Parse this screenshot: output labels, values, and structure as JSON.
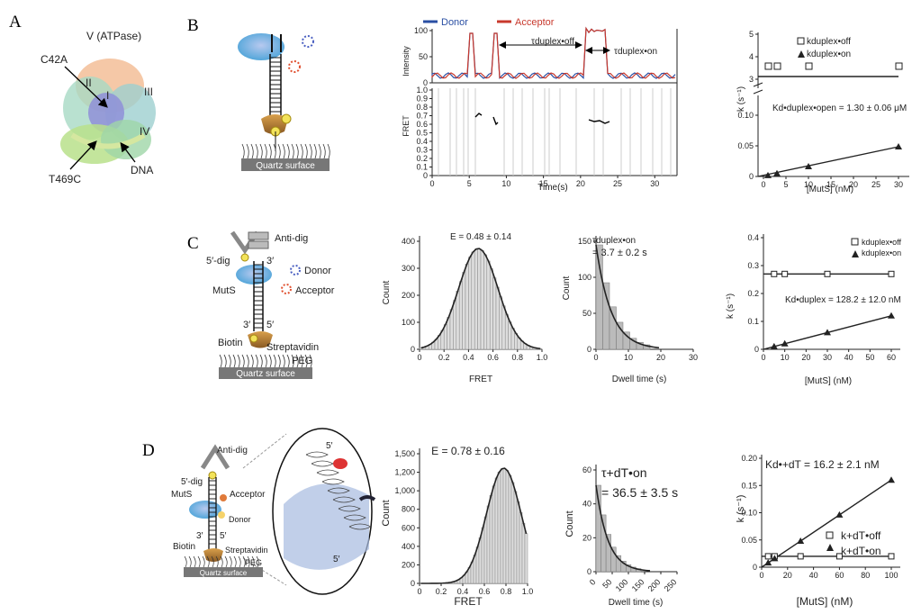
{
  "panel_letters": {
    "a": "A",
    "b": "B",
    "c": "C",
    "d": "D"
  },
  "panelA": {
    "labels": {
      "v": "V (ATPase)",
      "c42a": "C42A",
      "ii": "II",
      "i": "I",
      "iii": "III",
      "iv": "IV",
      "t469c": "T469C",
      "dna": "DNA"
    }
  },
  "panelB": {
    "surface": "Quartz surface",
    "trace": {
      "legend": [
        "Donor",
        "Acceptor"
      ],
      "ylabel_top": "Intensity",
      "ylabel_bottom": "FRET",
      "xlabel": "Time(s)",
      "tau_off": "τduplex•off",
      "tau_on": "τduplex•on",
      "yticks_top": [
        "0",
        "50",
        "100"
      ],
      "yticks_bottom": [
        "0",
        "0.1",
        "0.2",
        "0.3",
        "0.4",
        "0.5",
        "0.6",
        "0.7",
        "0.8",
        "0.9",
        "1.0"
      ],
      "xticks": [
        "0",
        "5",
        "10",
        "15",
        "20",
        "25",
        "30"
      ]
    },
    "kplot": {
      "ylabel": "k (s⁻¹)",
      "xlabel": "[MutS] (nM)",
      "annotation": "Kd•duplex•open = 1.30 ± 0.06 μM",
      "legend": [
        "kduplex•off",
        "kduplex•on"
      ],
      "yticks_upper": [
        "3",
        "4",
        "5"
      ],
      "yticks_lower": [
        "0",
        "0.05",
        "0.10"
      ],
      "xticks": [
        "0",
        "5",
        "10",
        "15",
        "20",
        "25",
        "30"
      ]
    }
  },
  "panelC": {
    "schematic": {
      "anti_dig": "Anti-dig",
      "dig5": "5′-dig",
      "three": "3′",
      "donor": "Donor",
      "muts": "MutS",
      "acceptor": "Acceptor",
      "three2": "3′",
      "five2": "5′",
      "biotin": "Biotin",
      "streptavidin": "Streptavidin",
      "peg": "PEG",
      "surface": "Quartz surface"
    },
    "hist": {
      "title": "E = 0.48 ± 0.14",
      "ylabel": "Count",
      "xlabel": "FRET",
      "yticks": [
        "0",
        "100",
        "200",
        "300",
        "400"
      ],
      "xticks": [
        "0",
        "0.2",
        "0.4",
        "0.6",
        "0.8",
        "1.0"
      ]
    },
    "dwell": {
      "title": "τduplex•on",
      "value": "= 3.7 ± 0.2 s",
      "ylabel": "Count",
      "xlabel": "Dwell time (s)",
      "yticks": [
        "0",
        "50",
        "100",
        "150"
      ],
      "xticks": [
        "0",
        "10",
        "20",
        "30"
      ]
    },
    "kplot": {
      "ylabel": "k (s⁻¹)",
      "xlabel": "[MutS] (nM)",
      "annotation": "Kd•duplex = 128.2 ± 12.0 nM",
      "legend": [
        "kduplex•off",
        "kduplex•on"
      ],
      "yticks": [
        "0",
        "0.1",
        "0.2",
        "0.3",
        "0.4"
      ],
      "xticks": [
        "0",
        "10",
        "20",
        "30",
        "40",
        "50",
        "60"
      ]
    }
  },
  "panelD": {
    "schematic": {
      "anti_dig": "Anti-dig",
      "dig5": "5′-dig",
      "muts": "MutS",
      "acceptor": "Acceptor",
      "donor": "Donor",
      "three": "3′",
      "five": "5′",
      "biotin": "Biotin",
      "streptavidin": "Streptavidin",
      "peg": "PEG",
      "surface": "Quartz surface",
      "five_a": "5′",
      "five_b": "5′"
    },
    "hist": {
      "title": "E = 0.78 ± 0.16",
      "ylabel": "Count",
      "xlabel": "FRET",
      "yticks": [
        "0",
        "200",
        "400",
        "600",
        "800",
        "1,000",
        "1,200",
        "1,500"
      ],
      "xticks": [
        "0",
        "0.2",
        "0.4",
        "0.6",
        "0.8",
        "1.0"
      ]
    },
    "dwell": {
      "title": "τ+dT•on",
      "value": "= 36.5 ± 3.5 s",
      "ylabel": "Count",
      "xlabel": "Dwell time (s)",
      "yticks": [
        "0",
        "20",
        "40",
        "60"
      ],
      "xticks": [
        "0",
        "50",
        "100",
        "150",
        "200",
        "250"
      ]
    },
    "kplot": {
      "ylabel": "k (s⁻¹)",
      "xlabel": "[MutS] (nM)",
      "annotation": "Kd•+dT = 16.2 ± 2.1 nM",
      "legend": [
        "k+dT•off",
        "k+dT•on"
      ],
      "yticks": [
        "0",
        "0.05",
        "0.10",
        "0.15",
        "0.20"
      ],
      "xticks": [
        "0",
        "20",
        "40",
        "60",
        "80",
        "100"
      ]
    }
  }
}
